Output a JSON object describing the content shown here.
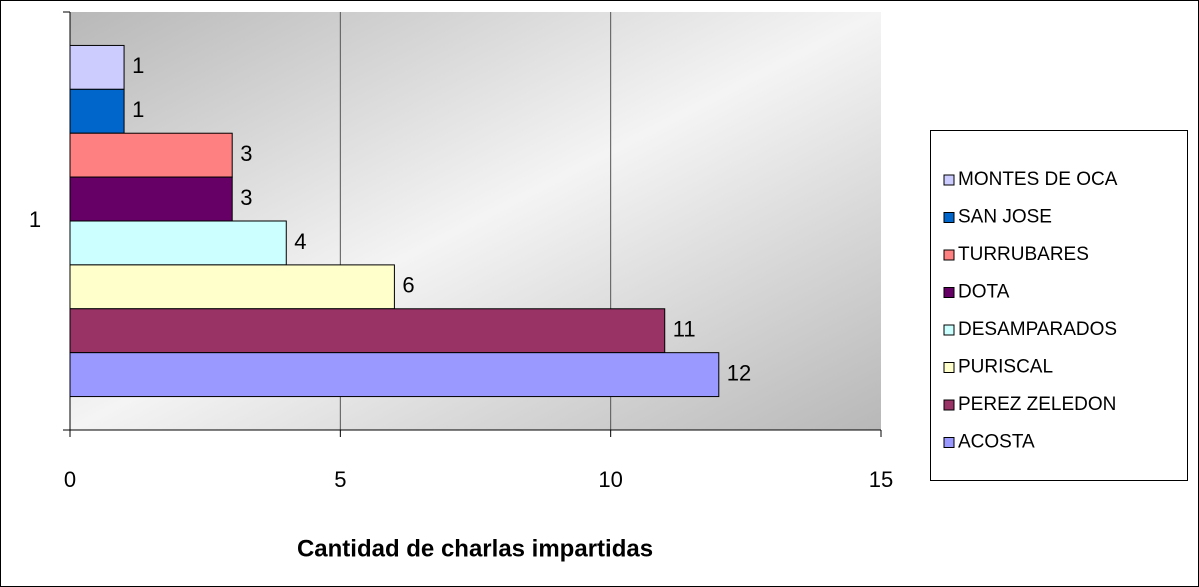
{
  "chart_data": {
    "type": "barh",
    "x_axis_label": "Cantidad de charlas impartidas",
    "categories": [
      "1"
    ],
    "series": [
      {
        "name": "MONTES DE OCA",
        "color": "#ccccff",
        "values": [
          1
        ]
      },
      {
        "name": "SAN JOSE",
        "color": "#0066cc",
        "values": [
          1
        ]
      },
      {
        "name": "TURRUBARES",
        "color": "#ff8080",
        "values": [
          3
        ]
      },
      {
        "name": "DOTA",
        "color": "#660066",
        "values": [
          3
        ]
      },
      {
        "name": "DESAMPARADOS",
        "color": "#ccffff",
        "values": [
          4
        ]
      },
      {
        "name": "PURISCAL",
        "color": "#ffffcc",
        "values": [
          6
        ]
      },
      {
        "name": "PEREZ ZELEDON",
        "color": "#993366",
        "values": [
          11
        ]
      },
      {
        "name": "ACOSTA",
        "color": "#9999ff",
        "values": [
          12
        ]
      }
    ],
    "xlim": [
      0,
      15
    ],
    "xticks": [
      0,
      5,
      10,
      15
    ],
    "grid": true,
    "legend": "right"
  }
}
